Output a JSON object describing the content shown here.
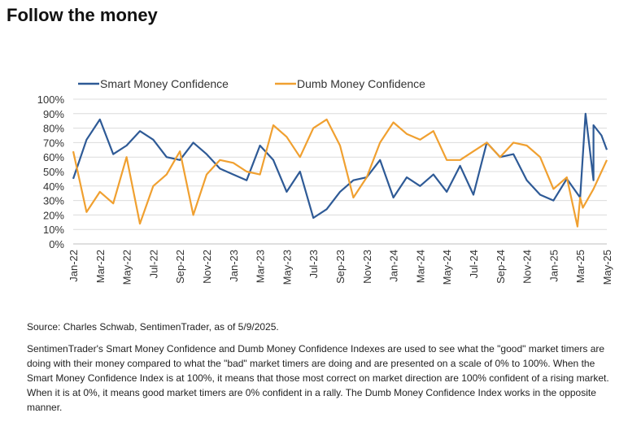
{
  "page": {
    "title": "Follow the money",
    "source": "Source: Charles Schwab, SentimenTrader, as of 5/9/2025.",
    "description": "SentimenTrader's Smart Money Confidence and Dumb Money Confidence Indexes are used to see what the \"good\" market timers are doing with their money compared to what the \"bad\" market timers are doing and are presented on a scale of 0% to 100%. When the Smart Money Confidence Index is at 100%, it means that those most correct on market direction are 100% confident of a rising market. When it is at 0%, it means good market timers are 0% confident in a rally. The Dumb Money Confidence Index works in the opposite manner."
  },
  "chart_data": {
    "type": "line",
    "title": "",
    "xlabel": "",
    "ylabel": "",
    "ylim": [
      0,
      100
    ],
    "yticks": [
      0,
      10,
      20,
      30,
      40,
      50,
      60,
      70,
      80,
      90,
      100
    ],
    "ytick_labels": [
      "0%",
      "10%",
      "20%",
      "30%",
      "40%",
      "50%",
      "60%",
      "70%",
      "80%",
      "90%",
      "100%"
    ],
    "x_categories": [
      "Jan-22",
      "Mar-22",
      "May-22",
      "Jul-22",
      "Sep-22",
      "Nov-22",
      "Jan-23",
      "Mar-23",
      "May-23",
      "Jul-23",
      "Sep-23",
      "Nov-23",
      "Jan-24",
      "Mar-24",
      "May-24",
      "Jul-24",
      "Sep-24",
      "Nov-24",
      "Jan-25",
      "Mar-25",
      "May-25"
    ],
    "legend_position": "top-left",
    "grid": true,
    "series": [
      {
        "name": "Smart Money Confidence",
        "color": "#2e5a96",
        "x": [
          0,
          0.5,
          1,
          1.5,
          2,
          2.5,
          3,
          3.5,
          4,
          4.5,
          5,
          5.5,
          6,
          6.5,
          7,
          7.5,
          8,
          8.5,
          9,
          9.5,
          10,
          10.5,
          11,
          11.5,
          12,
          12.5,
          13,
          13.5,
          14,
          14.5,
          15,
          15.5,
          16,
          16.5,
          17,
          17.5,
          18,
          18.5,
          19,
          19.5,
          20
        ],
        "values": [
          45,
          72,
          86,
          62,
          68,
          78,
          72,
          60,
          58,
          70,
          62,
          52,
          48,
          44,
          68,
          58,
          36,
          50,
          18,
          24,
          36,
          44,
          46,
          58,
          32,
          46,
          40,
          48,
          36,
          54,
          34,
          70,
          60,
          62,
          44,
          34,
          30,
          45,
          32,
          44,
          65
        ],
        "extra_points": [
          [
            19.2,
            90
          ],
          [
            19.5,
            82
          ],
          [
            19.8,
            75
          ]
        ]
      },
      {
        "name": "Dumb Money Confidence",
        "color": "#f0a030",
        "x": [
          0,
          0.5,
          1,
          1.5,
          2,
          2.5,
          3,
          3.5,
          4,
          4.5,
          5,
          5.5,
          6,
          6.5,
          7,
          7.5,
          8,
          8.5,
          9,
          9.5,
          10,
          10.5,
          11,
          11.5,
          12,
          12.5,
          13,
          13.5,
          14,
          14.5,
          15,
          15.5,
          16,
          16.5,
          17,
          17.5,
          18,
          18.5,
          19,
          19.5,
          20
        ],
        "values": [
          64,
          22,
          36,
          28,
          60,
          14,
          40,
          48,
          64,
          20,
          48,
          58,
          56,
          50,
          48,
          82,
          74,
          60,
          80,
          86,
          68,
          32,
          46,
          70,
          84,
          76,
          72,
          78,
          58,
          58,
          64,
          70,
          60,
          70,
          68,
          60,
          38,
          46,
          32,
          38,
          58
        ],
        "extra_points": [
          [
            18.9,
            12
          ],
          [
            19.1,
            25
          ]
        ]
      }
    ]
  }
}
